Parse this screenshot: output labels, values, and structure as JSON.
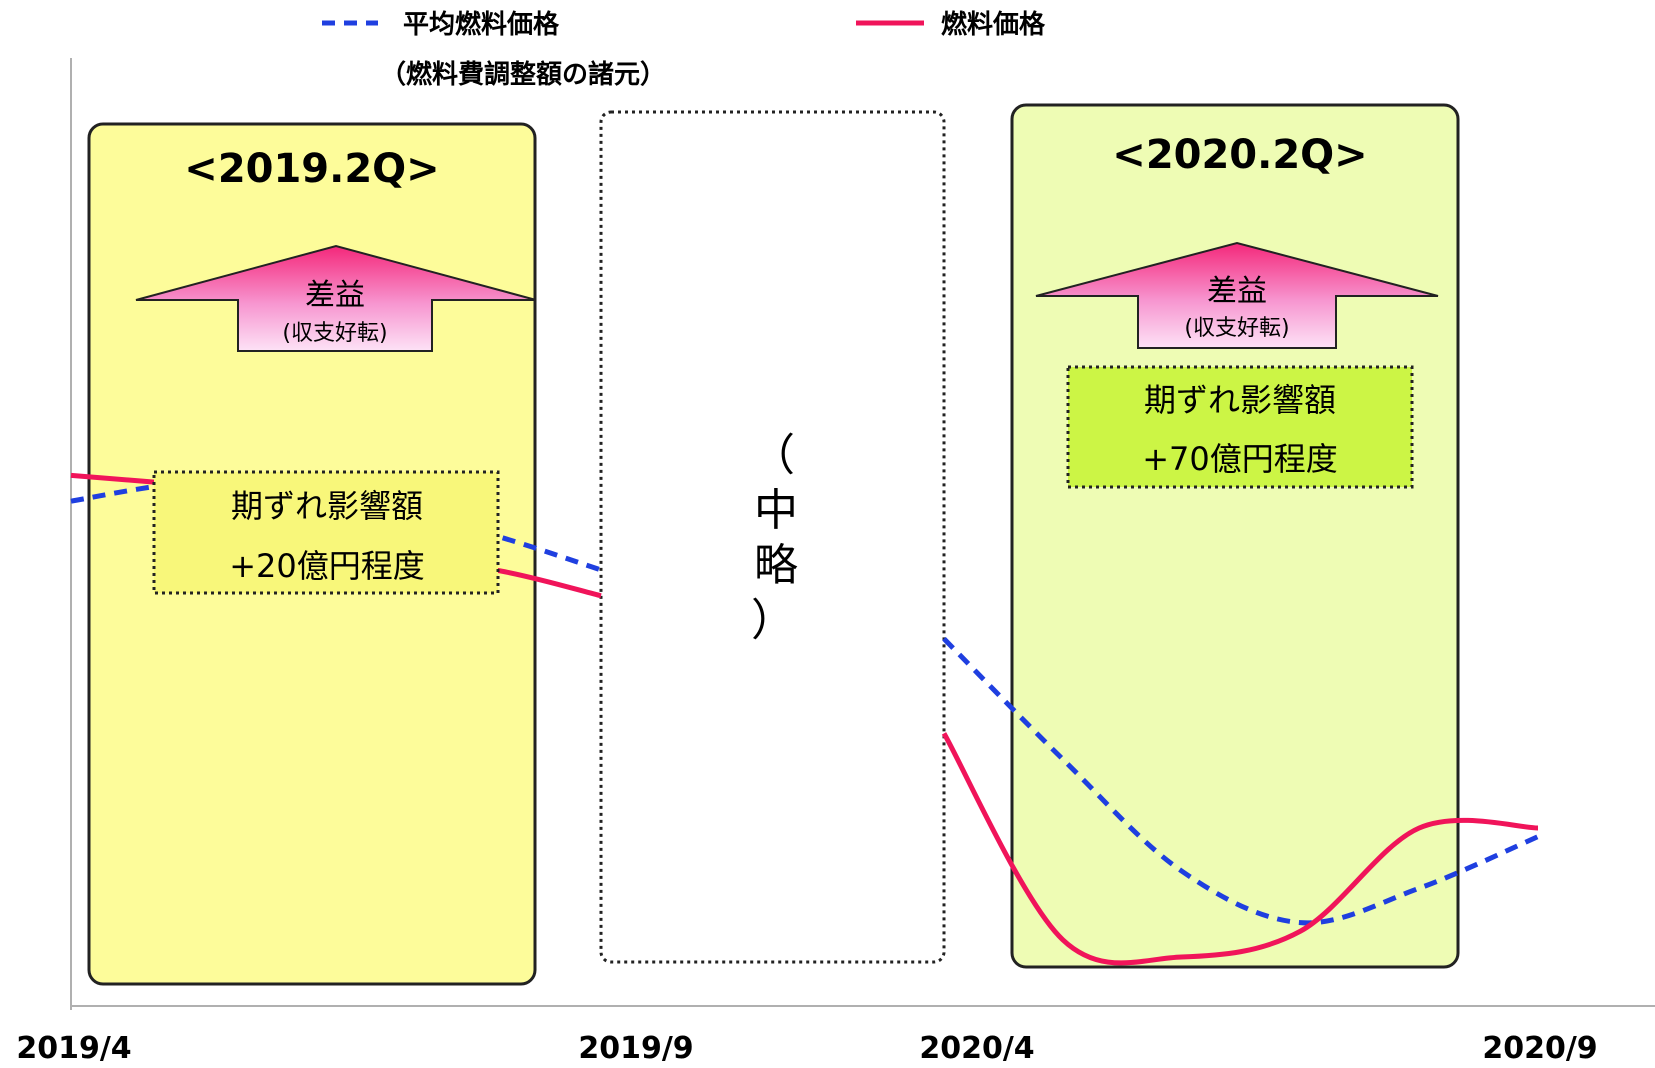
{
  "legend": {
    "avg_price_label": "平均燃料価格",
    "avg_price_sublabel": "（燃料費調整額の諸元）",
    "fuel_price_label": "燃料価格"
  },
  "colors": {
    "avg_price": "#1f3fe0",
    "fuel_price": "#f0145a",
    "panel_2019_fill": "#fdfc9a",
    "panel_2020_fill": "#eefcb4",
    "box_2019_fill": "#f8f77a",
    "box_2020_fill": "#ccf545"
  },
  "panels": [
    {
      "title": "<2019.2Q>",
      "arrow_main": "差益",
      "arrow_sub": "(収支好転)",
      "box_line1": "期ずれ影響額",
      "box_line2": "+20億円程度"
    },
    {
      "title": "<2020.2Q>",
      "arrow_main": "差益",
      "arrow_sub": "(収支好転)",
      "box_line1": "期ずれ影響額",
      "box_line2": "+70億円程度"
    }
  ],
  "omitted": {
    "chars": [
      "（",
      "中",
      "略",
      "）"
    ]
  },
  "chart_data": {
    "type": "line",
    "x_ticks": [
      "2019/4",
      "2019/9",
      "2020/4",
      "2020/9"
    ],
    "y_ticks": [],
    "note": "y axis unlabeled; values are relative levels (0-100)",
    "series": [
      {
        "name": "平均燃料価格",
        "style": "dashed",
        "segments": [
          {
            "x": [
              "2019/4",
              "2019/5",
              "2019/6",
              "2019/7",
              "2019/8",
              "2019/9"
            ],
            "values": [
              58,
              60,
              60,
              57,
              54,
              50
            ]
          },
          {
            "x": [
              "2020/4",
              "2020/5",
              "2020/6",
              "2020/7",
              "2020/8",
              "2020/9"
            ],
            "values": [
              42,
              28,
              15,
              9,
              13,
              19
            ]
          }
        ]
      },
      {
        "name": "燃料価格",
        "style": "solid",
        "segments": [
          {
            "x": [
              "2019/4",
              "2019/5",
              "2019/6",
              "2019/7",
              "2019/8",
              "2019/9"
            ],
            "values": [
              61,
              60,
              59,
              51,
              50,
              47
            ]
          },
          {
            "x": [
              "2020/4",
              "2020/5",
              "2020/6",
              "2020/7",
              "2020/8",
              "2020/9"
            ],
            "values": [
              31,
              7,
              5,
              8,
              20,
              20
            ]
          }
        ]
      }
    ]
  }
}
